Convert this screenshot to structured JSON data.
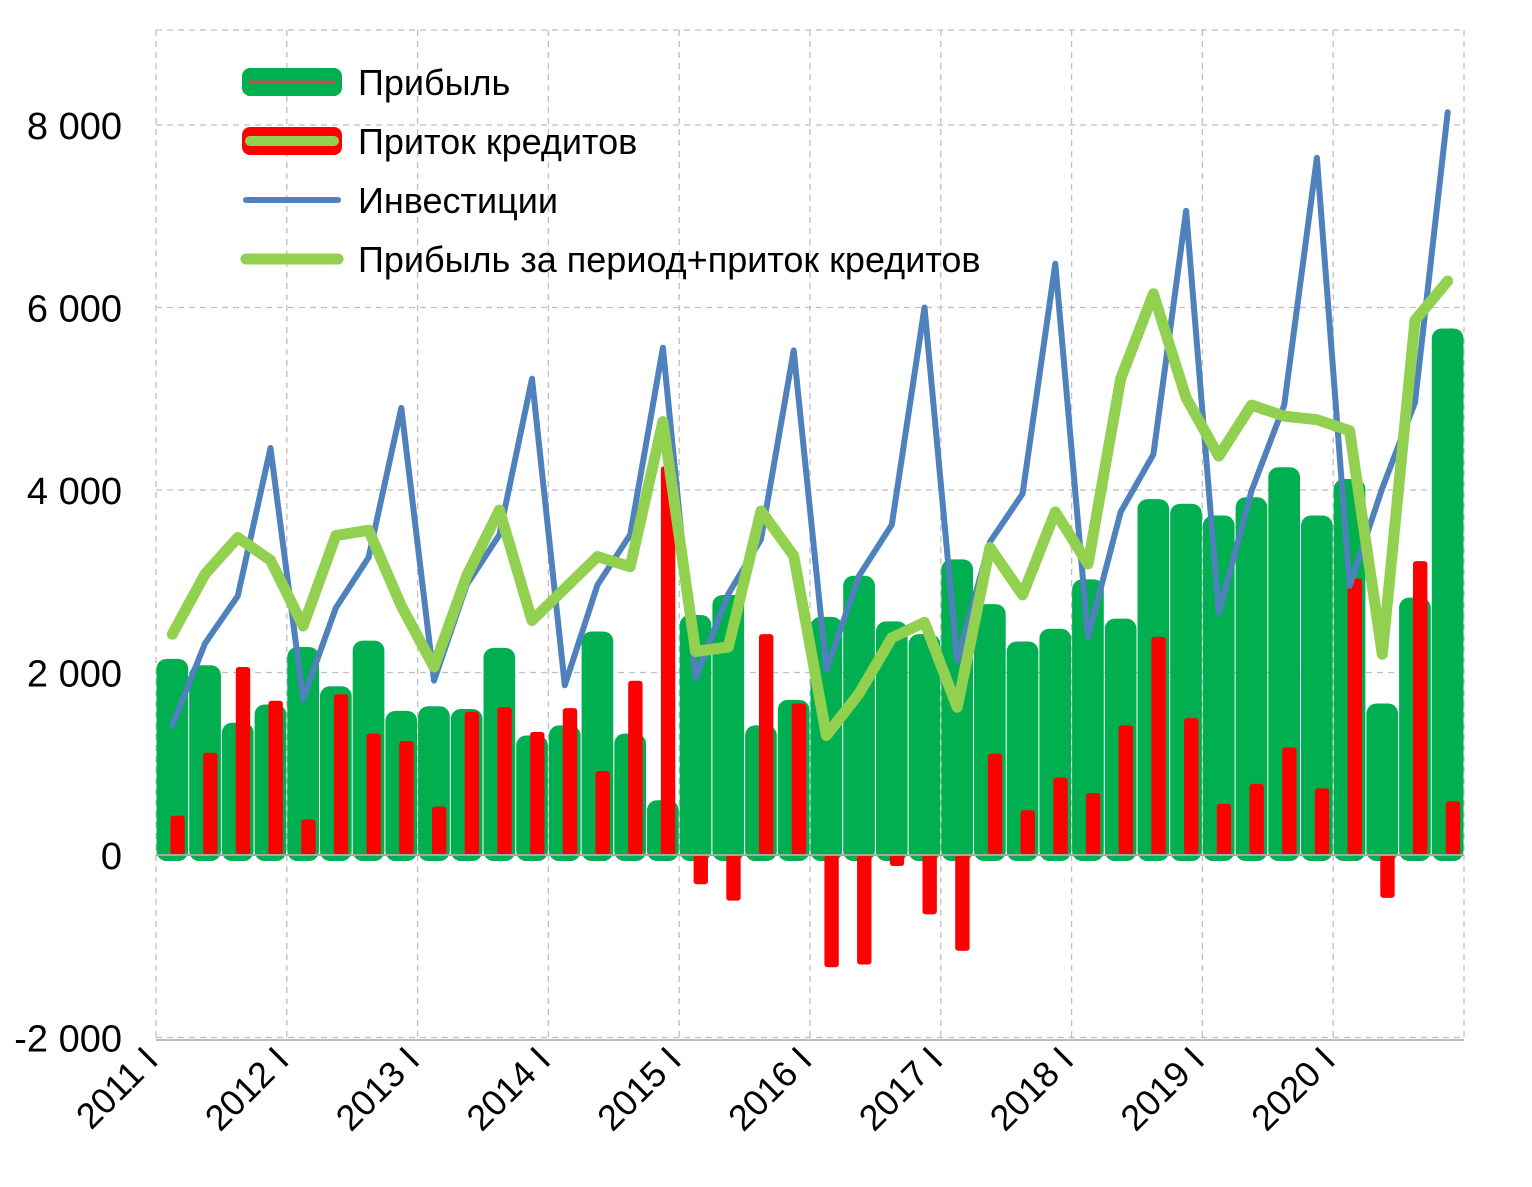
{
  "chart_data": {
    "type": "bar",
    "categories": [
      "2011 I",
      "2011 II",
      "2011 III",
      "2011 IV",
      "2012 I",
      "2012 II",
      "2012 III",
      "2012 IV",
      "2013 I",
      "2013 II",
      "2013 III",
      "2013 IV",
      "2014 I",
      "2014 II",
      "2014 III",
      "2014 IV",
      "2015 I",
      "2015 II",
      "2015 III",
      "2015 IV",
      "2016 I",
      "2016 II",
      "2016 III",
      "2016 IV",
      "2017 I",
      "2017 II",
      "2017 III",
      "2017 IV",
      "2018 I",
      "2018 II",
      "2018 III",
      "2018 IV",
      "2019 I",
      "2019 II",
      "2019 III",
      "2019 IV",
      "2020 I",
      "2020 II",
      "2020 III",
      "2020 IV"
    ],
    "x_tick_labels": [
      "2011 I",
      "2012 I",
      "2013 I",
      "2014 I",
      "2015 I",
      "2016 I",
      "2017 I",
      "2018 I",
      "2019 I",
      "2020 I"
    ],
    "y_ticks": [
      {
        "value": 8000,
        "label": "8 000"
      },
      {
        "value": 6000,
        "label": "6 000"
      },
      {
        "value": 4000,
        "label": "4 000"
      },
      {
        "value": 2000,
        "label": "2 000"
      },
      {
        "value": 0,
        "label": "0"
      },
      {
        "value": -2000,
        "label": "-2 000"
      }
    ],
    "ylim": [
      -2000,
      9000
    ],
    "grid": true,
    "legend_position": "top-left",
    "series": [
      {
        "name": "Прибыль",
        "type": "bar",
        "color": "#00b050",
        "values": [
          2150,
          2080,
          1450,
          1650,
          2280,
          1850,
          2350,
          1580,
          1630,
          1600,
          2270,
          1310,
          1420,
          2450,
          1330,
          600,
          2630,
          2850,
          1420,
          1700,
          2610,
          3060,
          2560,
          2420,
          3240,
          2750,
          2340,
          2480,
          3020,
          2590,
          3900,
          3850,
          3720,
          3920,
          4250,
          3720,
          4120,
          1660,
          2820,
          5770
        ]
      },
      {
        "name": "Приток кредитов",
        "type": "bar",
        "color": "#ff0000",
        "values": [
          430,
          1120,
          2060,
          1690,
          390,
          1760,
          1330,
          1250,
          530,
          1570,
          1620,
          1350,
          1610,
          920,
          1910,
          4260,
          -320,
          -500,
          2420,
          1660,
          -1230,
          -1200,
          -120,
          -650,
          -1050,
          1110,
          490,
          850,
          680,
          1420,
          2390,
          1500,
          560,
          780,
          1180,
          730,
          3030,
          -470,
          3220,
          590
        ]
      },
      {
        "name": "Инвестиции",
        "type": "line",
        "color": "#4f81bd",
        "values": [
          1420,
          2320,
          2840,
          4460,
          1710,
          2710,
          3260,
          4900,
          1910,
          2960,
          3510,
          5220,
          1860,
          2960,
          3510,
          5560,
          1940,
          2860,
          3460,
          5530,
          2030,
          3060,
          3620,
          6000,
          2130,
          3430,
          3960,
          6480,
          2390,
          3760,
          4390,
          7060,
          2650,
          3990,
          4930,
          7640,
          2950,
          4020,
          4960,
          8140
        ]
      },
      {
        "name": "Прибыль за период+приток кредитов",
        "type": "line",
        "color": "#92d050",
        "values": [
          2420,
          3080,
          3480,
          3230,
          2510,
          3500,
          3560,
          2730,
          2060,
          3060,
          3780,
          2570,
          2920,
          3270,
          3160,
          4750,
          2230,
          2280,
          3770,
          3280,
          1310,
          1770,
          2380,
          2550,
          1620,
          3370,
          2850,
          3760,
          3190,
          5220,
          6150,
          5010,
          4370,
          4930,
          4810,
          4770,
          4650,
          2200,
          5860,
          6290
        ]
      }
    ]
  }
}
